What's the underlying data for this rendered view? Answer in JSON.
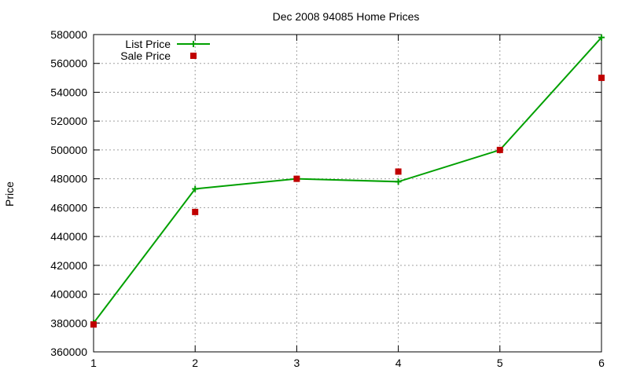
{
  "chart_data": {
    "type": "line",
    "title": "Dec 2008 94085 Home Prices",
    "xlabel": "",
    "ylabel": "Price",
    "xlim": [
      1,
      6
    ],
    "ylim": [
      360000,
      580000
    ],
    "x_ticks": [
      1,
      2,
      3,
      4,
      5,
      6
    ],
    "y_ticks": [
      360000,
      380000,
      400000,
      420000,
      440000,
      460000,
      480000,
      500000,
      520000,
      540000,
      560000,
      580000
    ],
    "grid": true,
    "legend_position": "top-left",
    "x": [
      1,
      2,
      3,
      4,
      5,
      6
    ],
    "series": [
      {
        "name": "List Price",
        "style": "line-with-plus-markers",
        "color": "#00a000",
        "values": [
          380000,
          473000,
          480000,
          478000,
          500000,
          578000
        ]
      },
      {
        "name": "Sale Price",
        "style": "square-markers",
        "color": "#c00000",
        "values": [
          379000,
          457000,
          480000,
          485000,
          500000,
          550000
        ]
      }
    ]
  }
}
